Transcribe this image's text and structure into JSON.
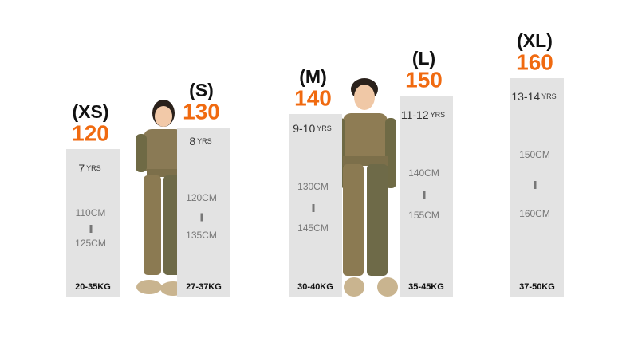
{
  "sizes": [
    {
      "label": "(XS)",
      "height": "120",
      "age": "7",
      "age_unit": "YRS",
      "range_from": "110CM",
      "range_to": "125CM",
      "weight": "20-35KG"
    },
    {
      "label": "(S)",
      "height": "130",
      "age": "8",
      "age_unit": "YRS",
      "range_from": "120CM",
      "range_to": "135CM",
      "weight": "27-37KG"
    },
    {
      "label": "(M)",
      "height": "140",
      "age": "9-10",
      "age_unit": "YRS",
      "range_from": "130CM",
      "range_to": "145CM",
      "weight": "30-40KG"
    },
    {
      "label": "(L)",
      "height": "150",
      "age": "11-12",
      "age_unit": "YRS",
      "range_from": "140CM",
      "range_to": "155CM",
      "weight": "35-45KG"
    },
    {
      "label": "(XL)",
      "height": "160",
      "age": "13-14",
      "age_unit": "YRS",
      "range_from": "150CM",
      "range_to": "160CM",
      "weight": "37-50KG"
    }
  ]
}
